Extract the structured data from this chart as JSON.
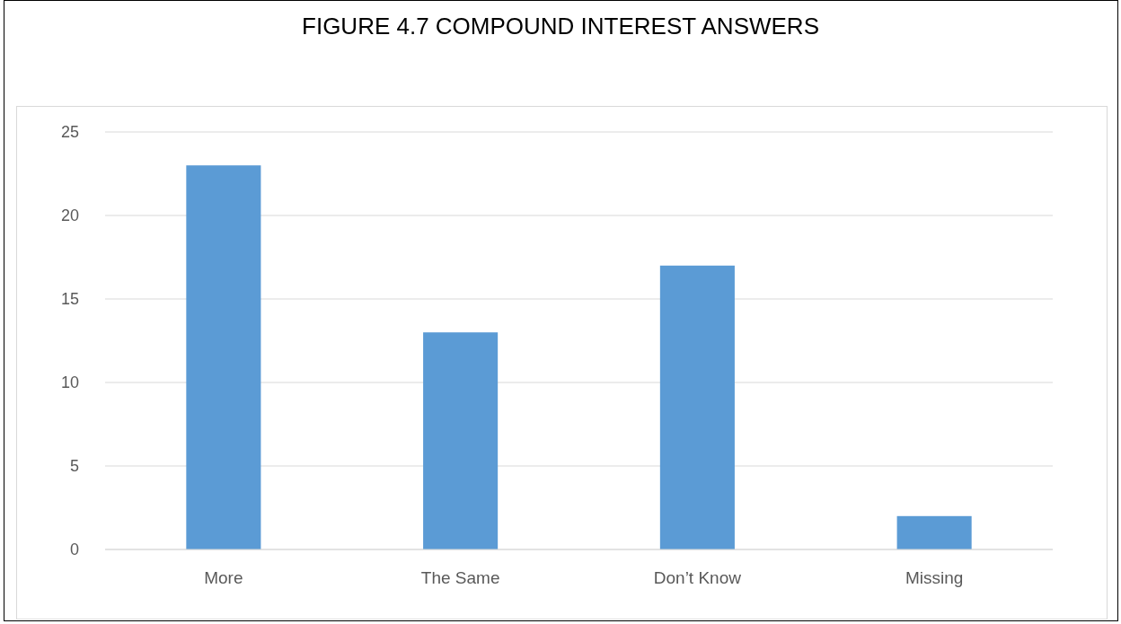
{
  "chart_data": {
    "type": "bar",
    "title": "FIGURE 4.7 COMPOUND INTEREST ANSWERS",
    "categories": [
      "More",
      "The Same",
      "Don’t Know",
      "Missing"
    ],
    "values": [
      23,
      13,
      17,
      2
    ],
    "color": "#5b9bd5",
    "ylim": [
      0,
      25
    ],
    "yticks": [
      0,
      5,
      10,
      15,
      20,
      25
    ],
    "grid": "y"
  }
}
